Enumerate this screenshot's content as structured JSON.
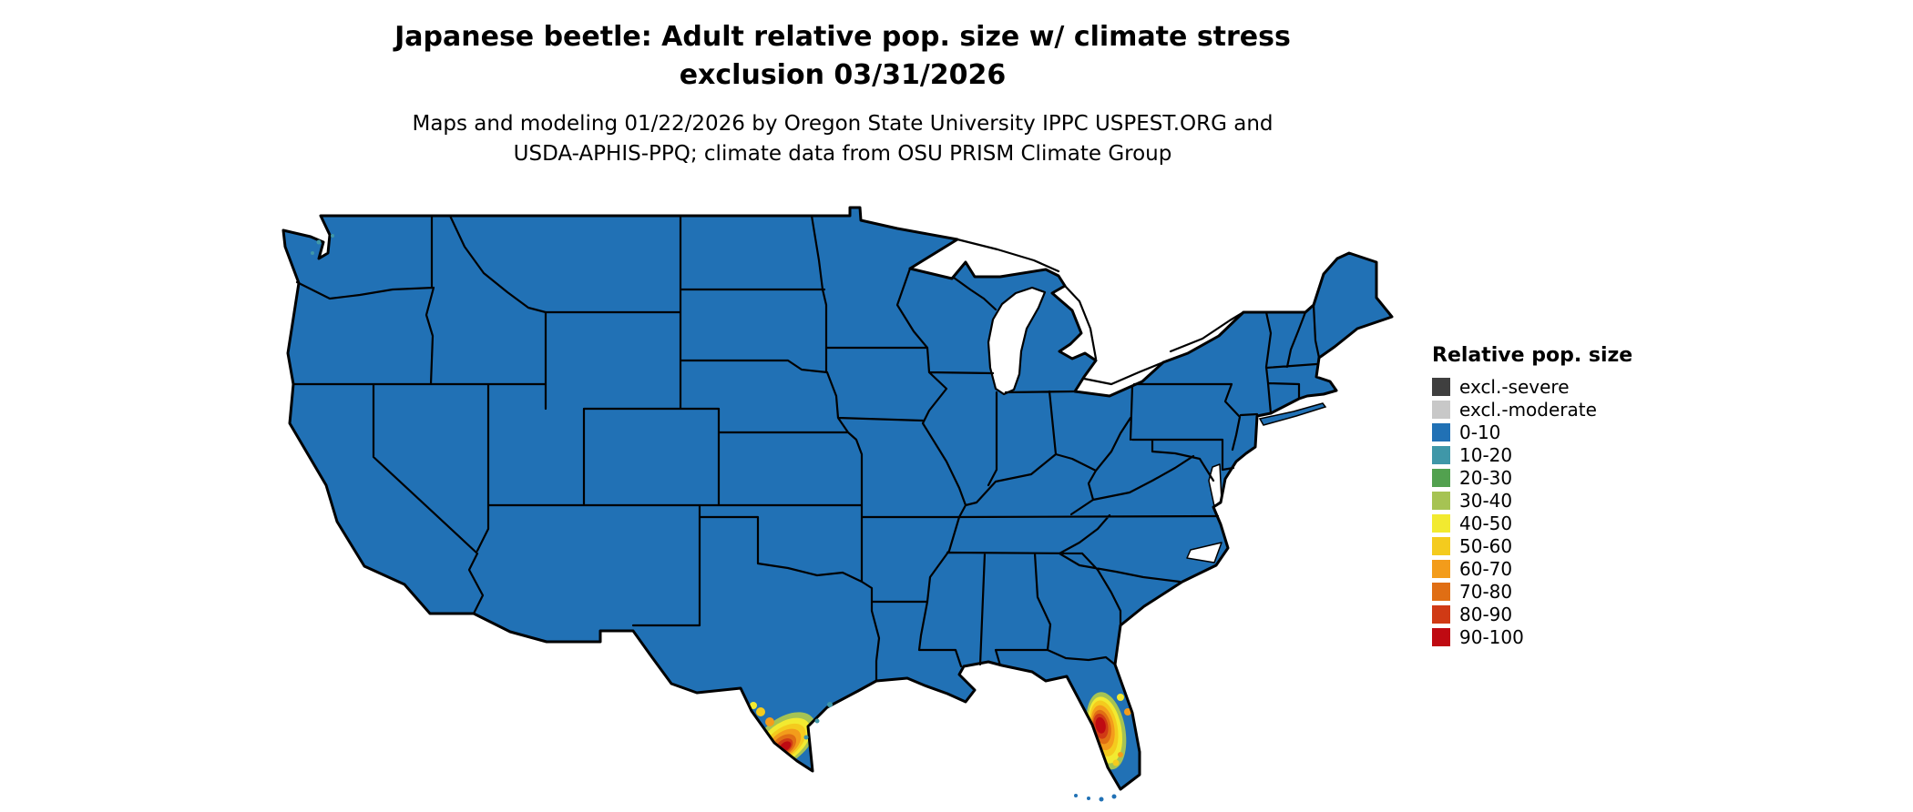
{
  "title": {
    "line1": "Japanese beetle: Adult relative pop. size w/ climate stress",
    "line2": "exclusion 03/31/2026"
  },
  "subtitle": {
    "line1": "Maps and modeling 01/22/2026 by Oregon State University IPPC USPEST.ORG and",
    "line2": "USDA-APHIS-PPQ; climate data from OSU PRISM Climate Group"
  },
  "legend": {
    "title": "Relative pop. size",
    "items": [
      {
        "label": "excl.-severe",
        "color": "#3f3f3f"
      },
      {
        "label": "excl.-moderate",
        "color": "#c8c8c8"
      },
      {
        "label": "0-10",
        "color": "#2171b5"
      },
      {
        "label": "10-20",
        "color": "#3f97a8"
      },
      {
        "label": "20-30",
        "color": "#52a14f"
      },
      {
        "label": "30-40",
        "color": "#a6c353"
      },
      {
        "label": "40-50",
        "color": "#f2ea30"
      },
      {
        "label": "50-60",
        "color": "#f4cb1e"
      },
      {
        "label": "60-70",
        "color": "#f39c1b"
      },
      {
        "label": "70-80",
        "color": "#e06e14"
      },
      {
        "label": "80-90",
        "color": "#d03a15"
      },
      {
        "label": "90-100",
        "color": "#bf0a12"
      }
    ]
  },
  "map": {
    "name": "Contiguous United States",
    "base_value_class": "0-10",
    "border_color": "#000000",
    "water_color": "#ffffff",
    "hotspots": [
      {
        "region": "South Texas (Rio Grande Valley)",
        "peak_class": "90-100",
        "classes": [
          "30-40",
          "40-50",
          "50-60",
          "60-70",
          "70-80",
          "80-90",
          "90-100"
        ]
      },
      {
        "region": "Central / South Florida",
        "peak_class": "90-100",
        "classes": [
          "30-40",
          "40-50",
          "50-60",
          "60-70",
          "70-80",
          "80-90",
          "90-100"
        ]
      }
    ]
  }
}
